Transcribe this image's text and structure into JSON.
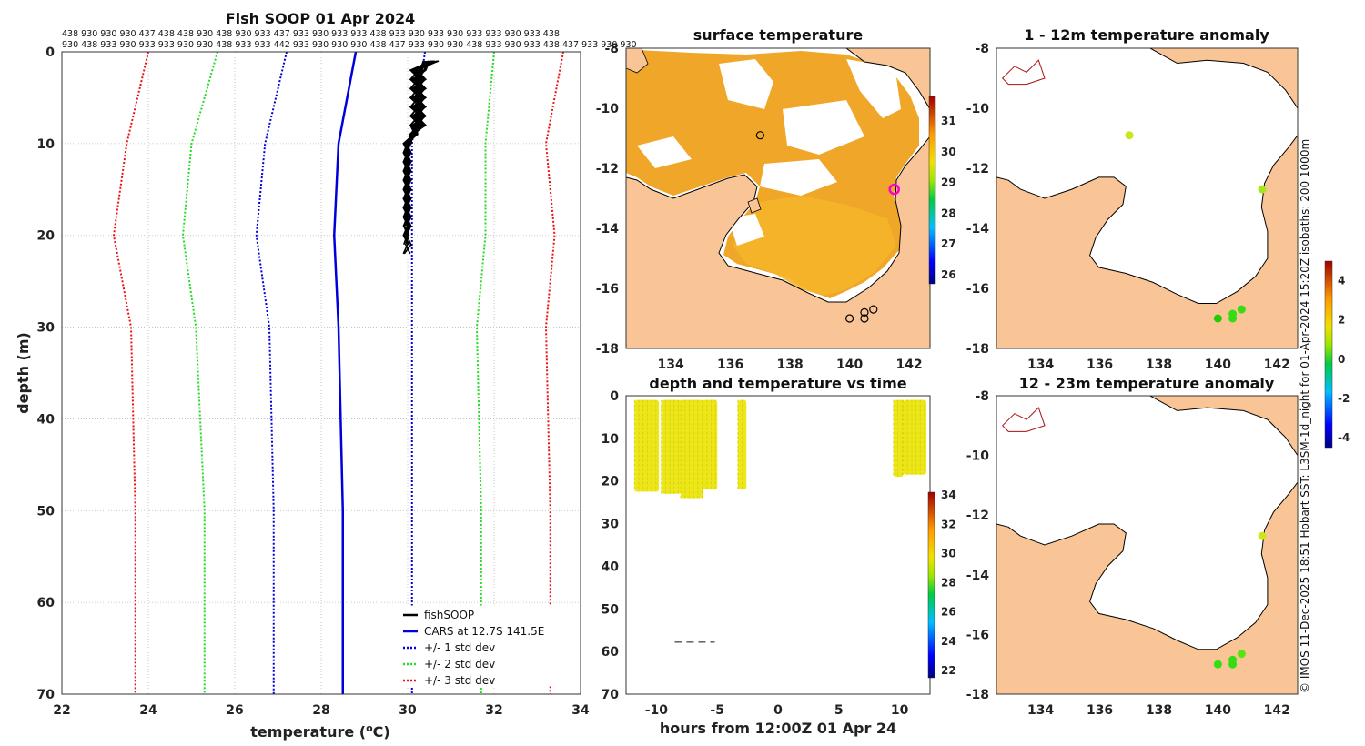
{
  "panels": {
    "profile": {
      "title": "Fish SOOP 01 Apr 2024",
      "xlabel": "temperature (",
      "xlabel_sup": "o",
      "xlabel_end": "C)",
      "ylabel": "depth (m)",
      "top_labels_row1": "438 930 930 930 437 438 438 930 438 930 933 437 933 930 933 933 438 933 930 933 930 933 933 930 933 438",
      "top_labels_row2": "930 438 933 930 933 933 930 930 438 933 933 442 933 930 930 930 438 437 933 930 930 438 933 930 933 438 437 933 930 930",
      "legend": [
        "fishSOOP",
        "CARS at 12.7S 141.5E",
        "+/- 1 std dev",
        "+/- 2 std dev",
        "+/- 3 std dev"
      ]
    },
    "sst": {
      "title": "surface temperature"
    },
    "depth_time": {
      "title": "depth and temperature vs time",
      "xlabel": "hours from 12:00Z 01 Apr 24"
    },
    "anom1": {
      "title": "1 - 12m temperature anomaly"
    },
    "anom2": {
      "title": "12 - 23m temperature anomaly"
    },
    "credit": "© IMOS 11-Dec-2025 18:51 Hobart SST: L3SM-1d_night for 01-Apr-2024 15:20Z isobaths: 200  1000m"
  },
  "chart_data": [
    {
      "id": "profile",
      "type": "line",
      "title": "Fish SOOP 01 Apr 2024",
      "xlabel": "temperature (°C)",
      "ylabel": "depth (m)",
      "xlim": [
        22,
        34
      ],
      "ylim": [
        0,
        70
      ],
      "xticks": [
        "22",
        "24",
        "26",
        "28",
        "30",
        "32",
        "34"
      ],
      "yticks": [
        "0",
        "10",
        "20",
        "30",
        "40",
        "50",
        "60",
        "70"
      ],
      "depths": [
        0,
        10,
        20,
        30,
        50,
        70
      ],
      "series": [
        {
          "name": "CARS at 12.7S 141.5E",
          "color": "#0000dd",
          "style": "solid",
          "values": [
            28.8,
            28.4,
            28.3,
            28.4,
            28.5,
            28.5
          ]
        },
        {
          "name": "+/- 1 std dev (upper)",
          "color": "#0000dd",
          "style": "dotted",
          "values": [
            30.4,
            30.1,
            30.1,
            30.1,
            30.1,
            30.1
          ]
        },
        {
          "name": "+/- 1 std dev (lower)",
          "color": "#0000dd",
          "style": "dotted",
          "values": [
            27.2,
            26.7,
            26.5,
            26.8,
            26.9,
            26.9
          ]
        },
        {
          "name": "+/- 2 std dev (upper)",
          "color": "#22dd22",
          "style": "dotted",
          "values": [
            32.0,
            31.8,
            31.8,
            31.6,
            31.7,
            31.7
          ]
        },
        {
          "name": "+/- 2 std dev (lower)",
          "color": "#22dd22",
          "style": "dotted",
          "values": [
            25.6,
            25.0,
            24.8,
            25.1,
            25.3,
            25.3
          ]
        },
        {
          "name": "+/- 3 std dev (upper)",
          "color": "#ee1111",
          "style": "dotted",
          "values": [
            33.6,
            33.2,
            33.4,
            33.2,
            33.3,
            33.3
          ]
        },
        {
          "name": "+/- 3 std dev (lower)",
          "color": "#ee1111",
          "style": "dotted",
          "values": [
            24.0,
            23.5,
            23.2,
            23.6,
            23.7,
            23.7
          ]
        }
      ],
      "fishSOOP": {
        "color": "#000000",
        "temp_range": [
          29.9,
          30.6
        ],
        "depth_range": [
          1,
          23.5
        ]
      }
    },
    {
      "id": "sst_map",
      "type": "heatmap",
      "title": "surface temperature",
      "xlim": [
        132.5,
        142.7
      ],
      "ylim": [
        -18,
        -8
      ],
      "xticks": [
        "134",
        "136",
        "138",
        "140",
        "142"
      ],
      "yticks": [
        "-8",
        "-10",
        "-12",
        "-14",
        "-16",
        "-18"
      ],
      "colorbar": {
        "ticks": [
          "26",
          "27",
          "28",
          "29",
          "30",
          "31"
        ],
        "range": [
          25.7,
          31.8
        ]
      },
      "stations": [
        [
          137.0,
          -10.9
        ],
        [
          140.0,
          -17.0
        ],
        [
          140.5,
          -17.0
        ],
        [
          140.5,
          -16.8
        ],
        [
          140.8,
          -16.7
        ]
      ],
      "ship_position": [
        141.5,
        -12.7
      ]
    },
    {
      "id": "depth_time",
      "type": "scatter",
      "title": "depth and temperature vs time",
      "xlabel": "hours from 12:00Z 01 Apr 24",
      "xlim": [
        -12.5,
        12.5
      ],
      "ylim": [
        0,
        70
      ],
      "xticks": [
        "-10",
        "-5",
        "0",
        "5",
        "10"
      ],
      "yticks": [
        "0",
        "10",
        "20",
        "30",
        "40",
        "50",
        "60",
        "70"
      ],
      "colorbar": {
        "ticks": [
          "22",
          "24",
          "26",
          "28",
          "30",
          "32",
          "34"
        ],
        "range": [
          21.5,
          34.2
        ]
      },
      "casts": [
        {
          "start": -11.8,
          "end": -9.8,
          "max_depth": 22.5
        },
        {
          "start": -9.6,
          "end": -8.0,
          "max_depth": 23
        },
        {
          "start": -8.0,
          "end": -6.2,
          "max_depth": 24
        },
        {
          "start": -6.2,
          "end": -5.0,
          "max_depth": 22
        },
        {
          "start": -3.3,
          "end": -2.6,
          "max_depth": 22
        },
        {
          "start": 9.5,
          "end": 10.3,
          "max_depth": 19
        },
        {
          "start": 10.3,
          "end": 12.2,
          "max_depth": 18.5
        }
      ]
    },
    {
      "id": "anom1",
      "type": "scatter",
      "title": "1 - 12m temperature anomaly",
      "xlim": [
        132.5,
        142.7
      ],
      "ylim": [
        -18,
        -8
      ],
      "xticks": [
        "134",
        "136",
        "138",
        "140",
        "142"
      ],
      "yticks": [
        "-8",
        "-10",
        "-12",
        "-14",
        "-16",
        "-18"
      ],
      "points": [
        {
          "lon": 137.0,
          "lat": -10.9,
          "anomaly": 1.8
        },
        {
          "lon": 141.5,
          "lat": -12.7,
          "anomaly": 1.6
        },
        {
          "lon": 140.0,
          "lat": -17.0,
          "anomaly": 0.3
        },
        {
          "lon": 140.5,
          "lat": -17.0,
          "anomaly": 0.6
        },
        {
          "lon": 140.5,
          "lat": -16.85,
          "anomaly": 0.8
        },
        {
          "lon": 140.8,
          "lat": -16.7,
          "anomaly": 0.7
        }
      ]
    },
    {
      "id": "anom2",
      "type": "scatter",
      "title": "12 - 23m temperature anomaly",
      "xlim": [
        132.5,
        142.7
      ],
      "ylim": [
        -18,
        -8
      ],
      "xticks": [
        "134",
        "136",
        "138",
        "140",
        "142"
      ],
      "yticks": [
        "-8",
        "-10",
        "-12",
        "-14",
        "-16",
        "-18"
      ],
      "points": [
        {
          "lon": 141.5,
          "lat": -12.7,
          "anomaly": 2.0
        },
        {
          "lon": 140.0,
          "lat": -17.0,
          "anomaly": 0.5
        },
        {
          "lon": 140.5,
          "lat": -17.0,
          "anomaly": 0.7
        },
        {
          "lon": 140.5,
          "lat": -16.85,
          "anomaly": 0.9
        },
        {
          "lon": 140.8,
          "lat": -16.65,
          "anomaly": 1.2
        }
      ],
      "colorbar": {
        "ticks": [
          "4",
          "2",
          "0",
          "-2",
          "-4"
        ],
        "range": [
          -4.5,
          5
        ]
      }
    }
  ]
}
